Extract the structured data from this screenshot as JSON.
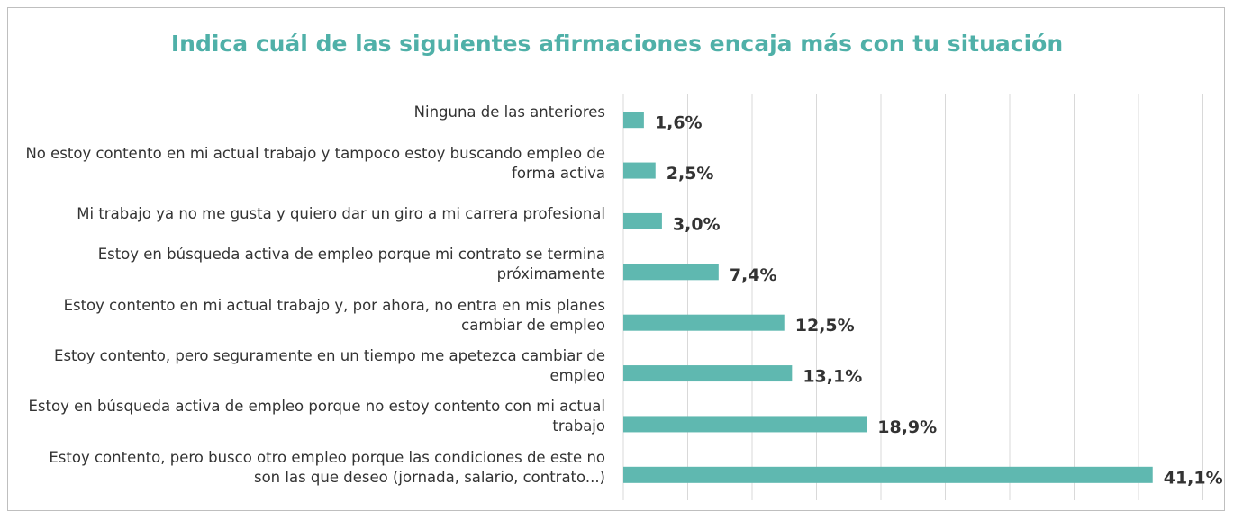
{
  "chart_data": {
    "type": "barh",
    "title": "Indica cuál de las siguientes afirmaciones encaja más con tu situación",
    "categories": [
      "Ninguna de las anteriores",
      "No estoy contento en mi actual trabajo y tampoco estoy buscando empleo de forma activa",
      "Mi trabajo ya no me gusta y quiero dar un giro a mi carrera profesional",
      "Estoy en búsqueda activa de empleo porque mi contrato se termina próximamente",
      "Estoy contento en mi actual trabajo y, por ahora, no entra en mis planes cambiar de empleo",
      "Estoy contento, pero seguramente en un tiempo me apetezca cambiar de empleo",
      "Estoy en búsqueda activa de empleo porque no estoy contento con mi actual trabajo",
      "Estoy contento, pero busco otro empleo porque las condiciones de este no son las que deseo (jornada, salario, contrato...)"
    ],
    "values": [
      1.6,
      2.5,
      3.0,
      7.4,
      12.5,
      13.1,
      18.9,
      41.1
    ],
    "value_labels": [
      "1,6%",
      "2,5%",
      "3,0%",
      "7,4%",
      "12,5%",
      "13,1%",
      "18,9%",
      "41,1%"
    ],
    "color": "#5fb8b0",
    "xlim": [
      0,
      45
    ],
    "xticks": [
      0,
      5,
      10,
      15,
      20,
      25,
      30,
      35,
      40,
      45
    ],
    "grid": true
  }
}
